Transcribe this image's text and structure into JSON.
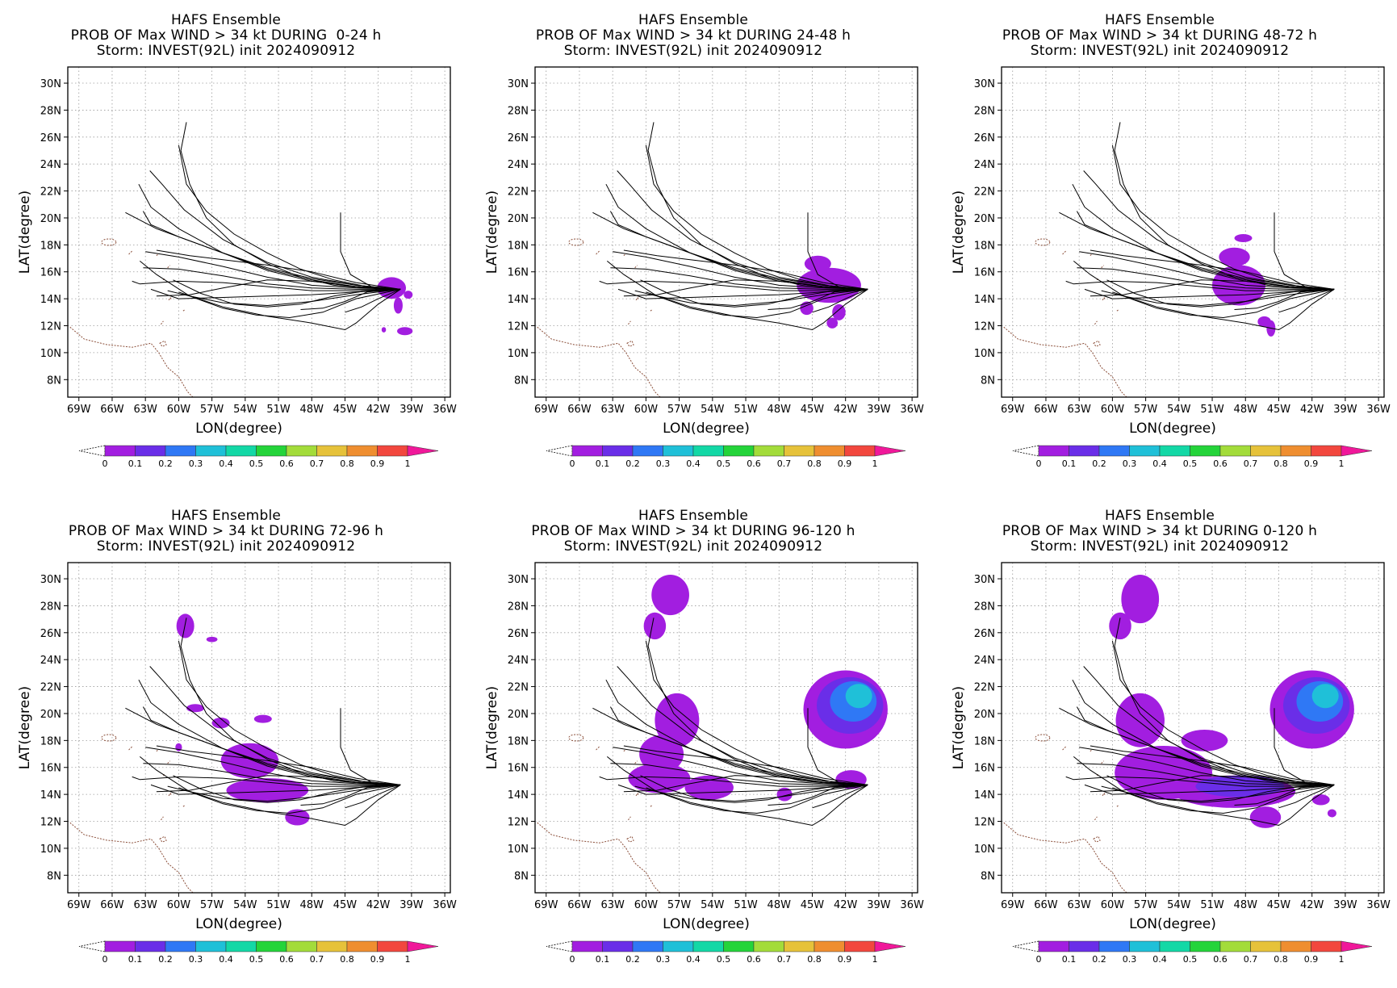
{
  "colorbar": {
    "labels": [
      "0",
      "0.1",
      "0.2",
      "0.3",
      "0.4",
      "0.5",
      "0.6",
      "0.7",
      "0.8",
      "0.9",
      "1"
    ],
    "colors": [
      "#a21ee0",
      "#6a2ee8",
      "#2f78f5",
      "#1fc0d8",
      "#13d8a6",
      "#24d43a",
      "#a3dc3a",
      "#e6c23a",
      "#ef8e30",
      "#f2473e",
      "#f0189a"
    ]
  },
  "axes": {
    "xlabel": "LON(degree)",
    "ylabel": "LAT(degree)",
    "xticks": [
      "69W",
      "66W",
      "63W",
      "60W",
      "57W",
      "54W",
      "51W",
      "48W",
      "45W",
      "42W",
      "39W",
      "36W"
    ],
    "yticks": [
      "8N",
      "10N",
      "12N",
      "14N",
      "16N",
      "18N",
      "20N",
      "22N",
      "24N",
      "26N",
      "28N",
      "30N"
    ]
  },
  "panels": [
    {
      "title1": "HAFS Ensemble",
      "title2": "PROB OF Max WIND > 34 kt DURING  0-24 h",
      "title3": "Storm: INVEST(92L) init 2024090912"
    },
    {
      "title1": "HAFS Ensemble",
      "title2": "PROB OF Max WIND > 34 kt DURING 24-48 h",
      "title3": "Storm: INVEST(92L) init 2024090912"
    },
    {
      "title1": "HAFS Ensemble",
      "title2": "PROB OF Max WIND > 34 kt DURING 48-72 h",
      "title3": "Storm: INVEST(92L) init 2024090912"
    },
    {
      "title1": "HAFS Ensemble",
      "title2": "PROB OF Max WIND > 34 kt DURING 72-96 h",
      "title3": "Storm: INVEST(92L) init 2024090912"
    },
    {
      "title1": "HAFS Ensemble",
      "title2": "PROB OF Max WIND > 34 kt DURING 96-120 h",
      "title3": "Storm: INVEST(92L) init 2024090912"
    },
    {
      "title1": "HAFS Ensemble",
      "title2": "PROB OF Max WIND > 34 kt DURING 0-120 h",
      "title3": "Storm: INVEST(92L) init 2024090912"
    }
  ]
}
